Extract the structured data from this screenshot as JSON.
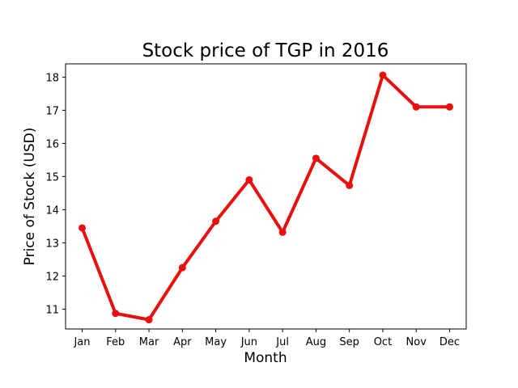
{
  "chart_data": {
    "type": "line",
    "title": "Stock price of TGP in 2016",
    "xlabel": "Month",
    "ylabel": "Price of Stock (USD)",
    "categories": [
      "Jan",
      "Feb",
      "Mar",
      "Apr",
      "May",
      "Jun",
      "Jul",
      "Aug",
      "Sep",
      "Oct",
      "Nov",
      "Dec"
    ],
    "series": [
      {
        "values": [
          13.45,
          10.87,
          10.68,
          12.25,
          13.65,
          14.9,
          13.32,
          15.55,
          14.73,
          18.06,
          17.1,
          17.1
        ],
        "color": "#e8100f"
      }
    ],
    "yticks": [
      11,
      12,
      13,
      14,
      15,
      16,
      17,
      18
    ],
    "ylim": [
      10.4,
      18.4
    ],
    "grid": false,
    "legend": "none"
  }
}
